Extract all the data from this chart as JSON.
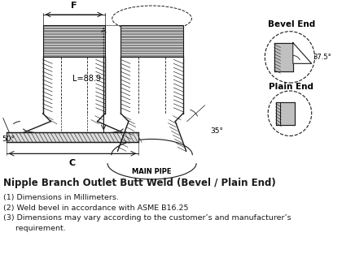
{
  "title": "Nipple Branch Outlet Butt Weld (Bevel / Plain End)",
  "notes": [
    "(1) Dimensions in Millimeters.",
    "(2) Weld bevel in accordance with ASME B16.25",
    "(3) Dimensions may vary according to the customer’s and manufacturer’s",
    "     requirement."
  ],
  "annotations": {
    "F": "F",
    "C": "C",
    "L": "L=88.9",
    "angle1": "50°",
    "angle2": "35°",
    "angle3": "37.5°",
    "bevel_end": "Bevel End",
    "plain_end": "Plain End",
    "main_pipe": "MAIN PIPE"
  },
  "bg_color": "#ffffff",
  "line_color": "#1a1a1a",
  "title_fontsize": 8.5,
  "note_fontsize": 6.8,
  "annotation_fontsize": 6.5
}
